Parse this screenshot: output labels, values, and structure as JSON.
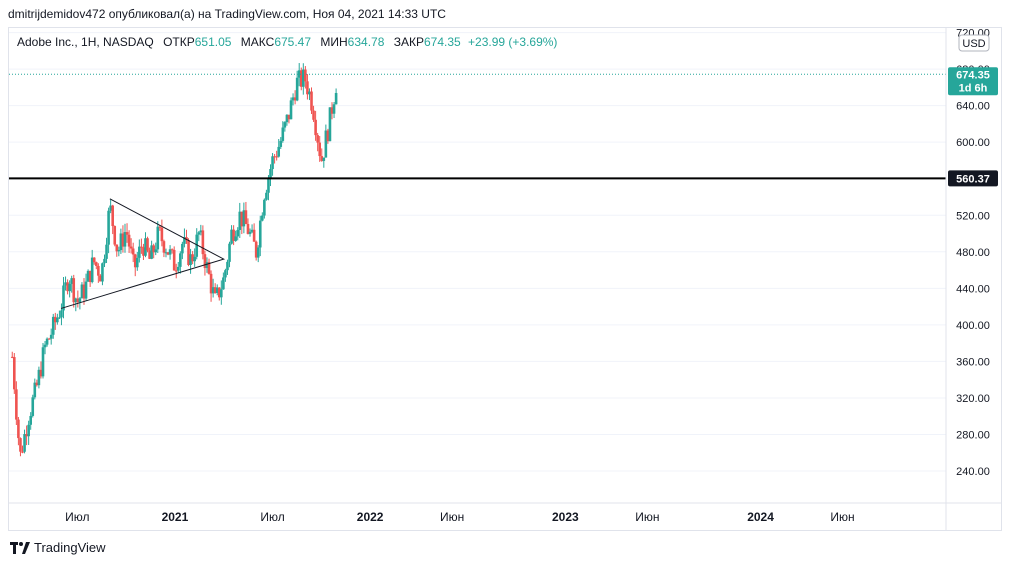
{
  "header": {
    "publisher_line": "dmitrijdemidov472 опубликовал(а) на TradingView.com, Ноя 04, 2021 14:33 UTC"
  },
  "legend": {
    "symbol": "Adobe Inc., 1H, NASDAQ",
    "open_label": "ОТКР",
    "open_value": "651.05",
    "high_label": "МАКС",
    "high_value": "675.47",
    "low_label": "МИН",
    "low_value": "634.78",
    "close_label": "ЗАКР",
    "close_value": "674.35",
    "change": "+23.99 (+3.69%)"
  },
  "price_scale": {
    "currency": "USD",
    "last_price_badge": "674.35",
    "countdown_badge": "1d 6h",
    "level_badge": "560.37"
  },
  "footer": {
    "brand": "TradingView"
  },
  "colors": {
    "up": "#26a69a",
    "down": "#ef5350",
    "axis_text": "#131722",
    "grid": "#f0f3fa",
    "badge_green": "#26a69a",
    "badge_black": "#131722"
  },
  "chart_data": {
    "type": "candlestick",
    "title": "",
    "ylim": [
      205,
      725
    ],
    "y_ticks": [
      "240.00",
      "280.00",
      "320.00",
      "360.00",
      "400.00",
      "440.00",
      "480.00",
      "520.00",
      "560.00",
      "600.00",
      "640.00",
      "680.00",
      "720.00"
    ],
    "x_ticks": [
      "Июл",
      "2021",
      "Июл",
      "2022",
      "Июн",
      "2023",
      "Июн",
      "2024",
      "Июн"
    ],
    "last_price": 674.35,
    "horizontal_level": 560.37,
    "triangle_pattern": {
      "upper_start": [
        "2020-09",
        538
      ],
      "lower_start": [
        "2020-06",
        418
      ],
      "apex": [
        "2021-04",
        472
      ]
    },
    "price_path": [
      [
        "2020-03",
        365
      ],
      [
        "2020-03",
        255
      ],
      [
        "2020-04",
        300
      ],
      [
        "2020-04",
        330
      ],
      [
        "2020-05",
        375
      ],
      [
        "2020-05",
        395
      ],
      [
        "2020-06",
        420
      ],
      [
        "2020-06",
        455
      ],
      [
        "2020-07",
        425
      ],
      [
        "2020-07",
        440
      ],
      [
        "2020-08",
        470
      ],
      [
        "2020-08",
        455
      ],
      [
        "2020-09",
        530
      ],
      [
        "2020-09",
        480
      ],
      [
        "2020-10",
        505
      ],
      [
        "2020-10",
        460
      ],
      [
        "2020-11",
        490
      ],
      [
        "2020-11",
        470
      ],
      [
        "2020-12",
        500
      ],
      [
        "2020-12",
        485
      ],
      [
        "2021-01",
        465
      ],
      [
        "2021-01",
        490
      ],
      [
        "2021-02",
        470
      ],
      [
        "2021-02",
        500
      ],
      [
        "2021-03",
        460
      ],
      [
        "2021-03",
        425
      ],
      [
        "2021-04",
        450
      ],
      [
        "2021-04",
        500
      ],
      [
        "2021-05",
        520
      ],
      [
        "2021-05",
        505
      ],
      [
        "2021-06",
        480
      ],
      [
        "2021-06",
        545
      ],
      [
        "2021-07",
        580
      ],
      [
        "2021-07",
        600
      ],
      [
        "2021-08",
        630
      ],
      [
        "2021-08",
        665
      ],
      [
        "2021-09",
        670
      ],
      [
        "2021-09",
        640
      ],
      [
        "2021-10",
        580
      ],
      [
        "2021-10",
        620
      ],
      [
        "2021-11",
        674
      ]
    ]
  }
}
